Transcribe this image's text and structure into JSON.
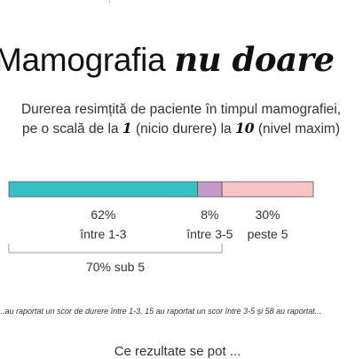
{
  "top_mark": ",",
  "header": {
    "title_main": "Mamografia ",
    "title_emphasis": "nu doare",
    "subtitle_a": "Durerea resimțită de paciente în timpul mamografiei,",
    "subtitle_b": "pe o scală de la ",
    "scale_min": "1",
    "subtitle_c": " (nicio durere) la ",
    "scale_max": "10",
    "subtitle_d": " (nivel maxim)"
  },
  "chart_data": {
    "type": "bar",
    "orientation": "horizontal-stacked",
    "categories": [
      "între 1-3",
      "între 3-5",
      "peste 5"
    ],
    "values": [
      62,
      8,
      30
    ],
    "value_labels": [
      "62%",
      "8%",
      "30%"
    ],
    "colors": [
      "#33c3c3",
      "#c39ac9",
      "#f8c4c6"
    ],
    "bracket_label": "70% sub 5",
    "title": "",
    "xlabel": "",
    "ylabel": ""
  },
  "note": "...au raportat un scor de durere între 1-3, 15 au raportat un scor între 3-5 și 58 au raportat...",
  "footer": "Ce rezultate se pot ..."
}
